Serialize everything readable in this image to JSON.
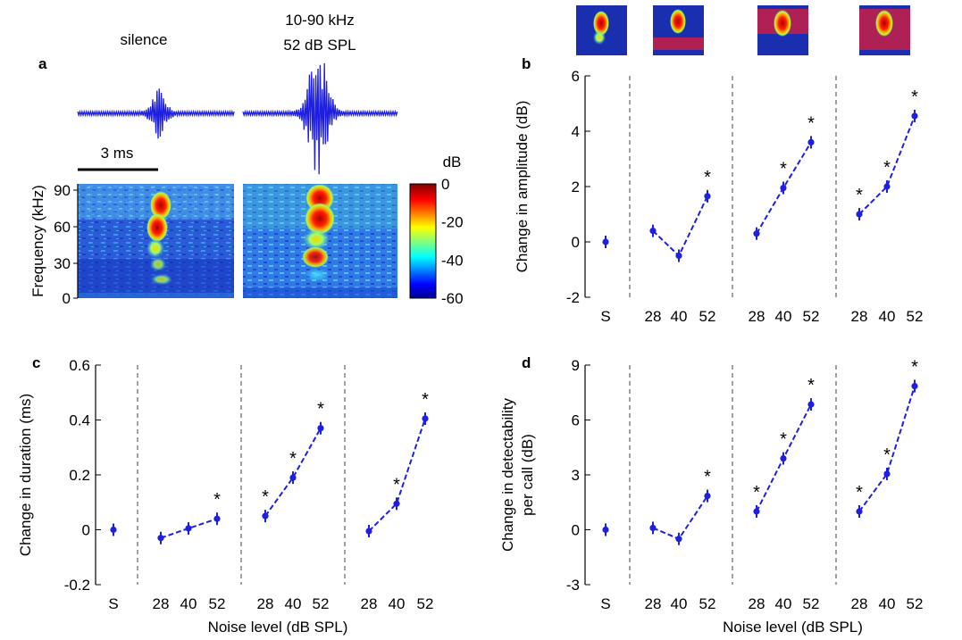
{
  "panel_a": {
    "letter": "a",
    "label_silence": "silence",
    "label_noise_line1": "10-90 kHz",
    "label_noise_line2": "52 dB SPL",
    "scalebar_label": "3 ms",
    "ylabel": "Frequency (kHz)",
    "yticks": [
      "90",
      "60",
      "30",
      "0"
    ],
    "colorbar_title": "dB",
    "colorbar_ticks": [
      "0",
      "-20",
      "-40",
      "-60"
    ]
  },
  "chart_data": [
    {
      "id": "b",
      "type": "line",
      "letter": "b",
      "title": "",
      "xlabel": "",
      "ylabel": "Change in amplitude (dB)",
      "ylim": [
        -2,
        6
      ],
      "yticks": [
        -2,
        0,
        2,
        4,
        6
      ],
      "grid": false,
      "x_categories": [
        "S",
        "28",
        "40",
        "52",
        "28",
        "40",
        "52",
        "28",
        "40",
        "52"
      ],
      "series": [
        {
          "values": [
            0
          ],
          "significant": [
            false
          ]
        },
        {
          "values": [
            0.4,
            -0.5,
            1.65
          ],
          "significant": [
            false,
            false,
            true
          ]
        },
        {
          "values": [
            0.3,
            1.95,
            3.6
          ],
          "significant": [
            false,
            true,
            true
          ]
        },
        {
          "values": [
            1.0,
            2.0,
            4.55
          ],
          "significant": [
            true,
            true,
            true
          ]
        }
      ]
    },
    {
      "id": "c",
      "type": "line",
      "letter": "c",
      "title": "",
      "xlabel": "Noise level (dB SPL)",
      "ylabel": "Change in duration (ms)",
      "ylim": [
        -0.2,
        0.6
      ],
      "yticks": [
        "-0.2",
        "0",
        "0.2",
        "0.4",
        "0.6"
      ],
      "grid": false,
      "x_categories": [
        "S",
        "28",
        "40",
        "52",
        "28",
        "40",
        "52",
        "28",
        "40",
        "52"
      ],
      "series": [
        {
          "values": [
            0
          ],
          "significant": [
            false
          ]
        },
        {
          "values": [
            -0.03,
            0.005,
            0.04
          ],
          "significant": [
            false,
            false,
            true
          ]
        },
        {
          "values": [
            0.05,
            0.19,
            0.37
          ],
          "significant": [
            true,
            true,
            true
          ]
        },
        {
          "values": [
            -0.005,
            0.095,
            0.405
          ],
          "significant": [
            false,
            true,
            true
          ]
        }
      ]
    },
    {
      "id": "d",
      "type": "line",
      "letter": "d",
      "title": "",
      "xlabel": "Noise level (dB SPL)",
      "ylabel_line1": "Change in detectability",
      "ylabel_line2": "per call (dB)",
      "ylim": [
        -3,
        9
      ],
      "yticks": [
        -3,
        0,
        3,
        6,
        9
      ],
      "grid": false,
      "x_categories": [
        "S",
        "28",
        "40",
        "52",
        "28",
        "40",
        "52",
        "28",
        "40",
        "52"
      ],
      "series": [
        {
          "values": [
            0
          ],
          "significant": [
            false
          ]
        },
        {
          "values": [
            0.1,
            -0.5,
            1.85
          ],
          "significant": [
            false,
            false,
            true
          ]
        },
        {
          "values": [
            1.0,
            3.9,
            6.85
          ],
          "significant": [
            true,
            true,
            true
          ]
        },
        {
          "values": [
            1.0,
            3.05,
            7.85
          ],
          "significant": [
            true,
            true,
            true
          ]
        }
      ]
    }
  ],
  "style": {
    "line_color": "#1f1fe0",
    "divider_color": "#888888",
    "significance_mark": "*"
  }
}
